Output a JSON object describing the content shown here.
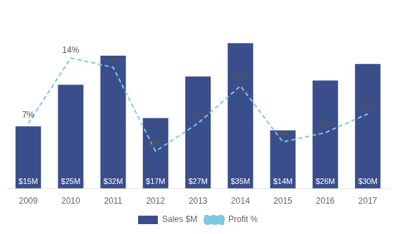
{
  "chart_data": {
    "type": "bar",
    "categories": [
      "2009",
      "2010",
      "2011",
      "2012",
      "2013",
      "2014",
      "2015",
      "2016",
      "2017"
    ],
    "series": [
      {
        "name": "Sales $M",
        "type": "bar",
        "color": "#3A4E8C",
        "values": [
          15,
          25,
          32,
          17,
          27,
          35,
          14,
          26,
          30
        ],
        "value_labels": [
          "$15M",
          "$25M",
          "$32M",
          "$17M",
          "$27M",
          "$35M",
          "$14M",
          "$26M",
          "$30M"
        ]
      },
      {
        "name": "Profit %",
        "type": "line",
        "color": "#7EC8E3",
        "line_style": "dashed",
        "axis": "y2",
        "values": [
          7,
          14,
          13,
          4,
          7,
          11,
          5,
          6,
          8
        ],
        "value_labels": [
          "7%",
          "14%",
          "13%",
          "4%",
          "7%",
          "11%",
          "5%",
          "6%",
          "8%"
        ]
      }
    ],
    "ylim": [
      0,
      42
    ],
    "y2lim": [
      0,
      18.7
    ],
    "tick_labels": "x",
    "grid": false,
    "legend": "bottom",
    "data_labels": true
  }
}
